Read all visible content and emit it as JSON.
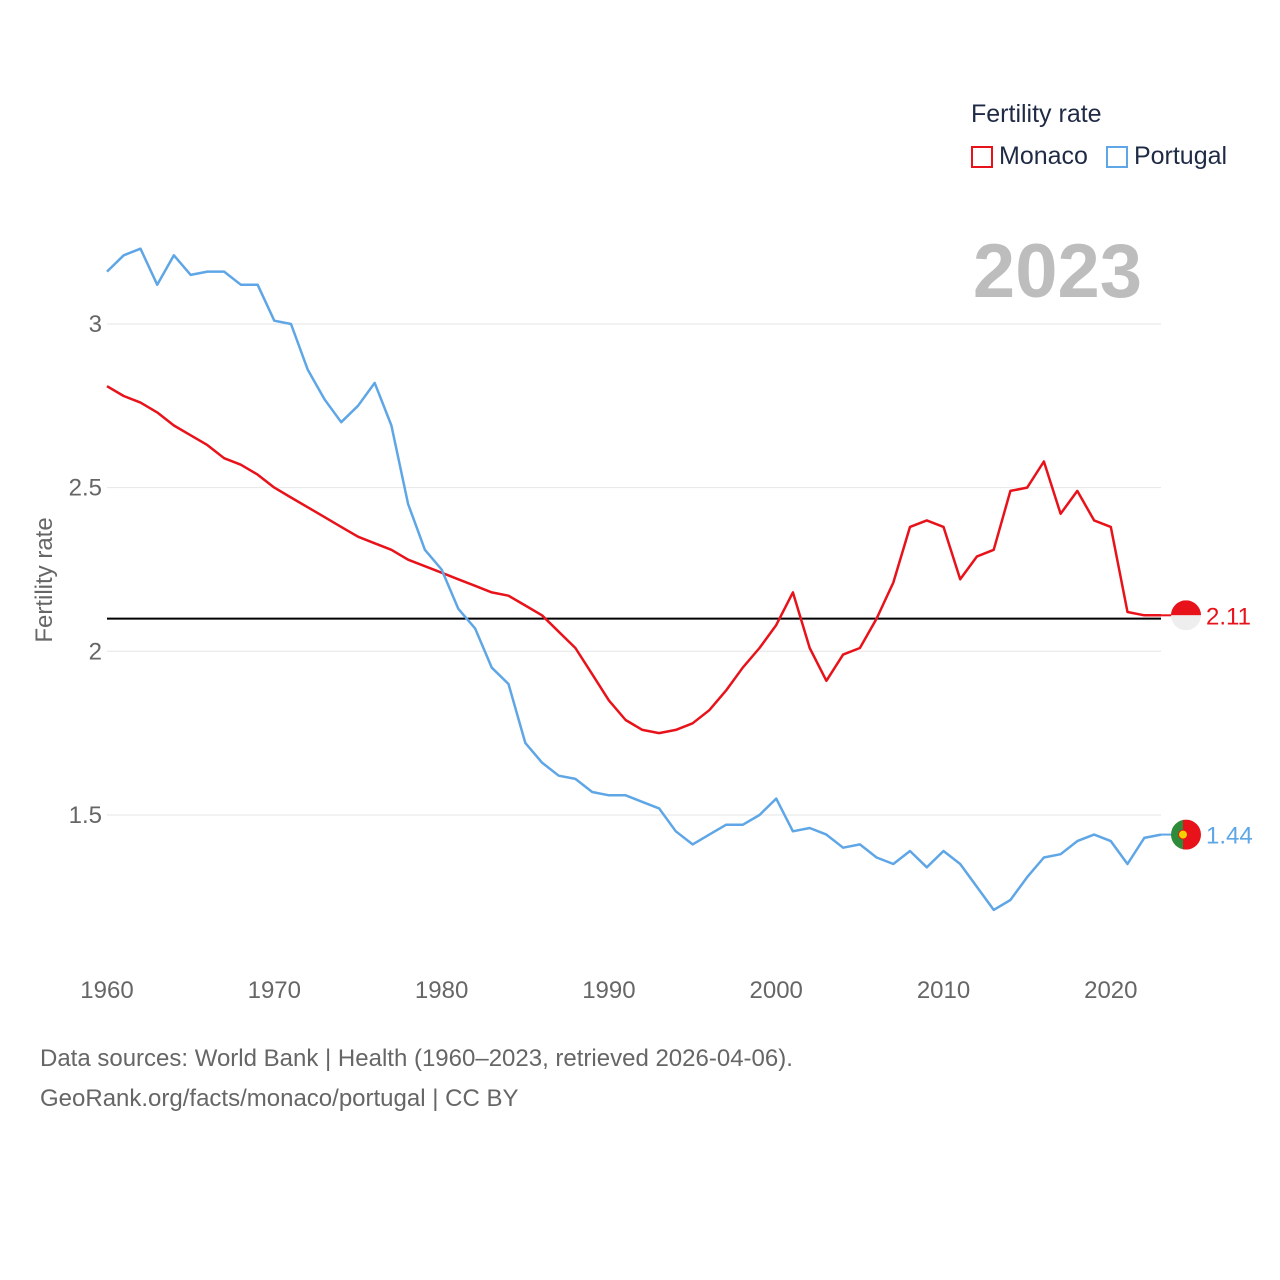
{
  "legend": {
    "title": "Fertility rate",
    "items": [
      {
        "name": "Monaco",
        "color": "#e8121b"
      },
      {
        "name": "Portugal",
        "color": "#5ea6e6"
      }
    ]
  },
  "year_label": "2023",
  "footer": {
    "line1": "Data sources: World Bank | Health (1960–2023, retrieved 2026-04-06).",
    "line2": "GeoRank.org/facts/monaco/portugal | CC BY"
  },
  "chart_data": {
    "type": "line",
    "title": "",
    "xlabel": "",
    "ylabel": "Fertility rate",
    "xlim": [
      1960,
      2023
    ],
    "ylim": [
      1.1,
      3.3
    ],
    "x_ticks": [
      1960,
      1970,
      1980,
      1990,
      2000,
      2010,
      2020
    ],
    "y_ticks": [
      1.5,
      2,
      2.5,
      3
    ],
    "y_tick_labels": [
      "1.5",
      "2",
      "2.5",
      "3"
    ],
    "reference_line": 2.1,
    "x": [
      1960,
      1961,
      1962,
      1963,
      1964,
      1965,
      1966,
      1967,
      1968,
      1969,
      1970,
      1971,
      1972,
      1973,
      1974,
      1975,
      1976,
      1977,
      1978,
      1979,
      1980,
      1981,
      1982,
      1983,
      1984,
      1985,
      1986,
      1987,
      1988,
      1989,
      1990,
      1991,
      1992,
      1993,
      1994,
      1995,
      1996,
      1997,
      1998,
      1999,
      2000,
      2001,
      2002,
      2003,
      2004,
      2005,
      2006,
      2007,
      2008,
      2009,
      2010,
      2011,
      2012,
      2013,
      2014,
      2015,
      2016,
      2017,
      2018,
      2019,
      2020,
      2021,
      2022,
      2023
    ],
    "series": [
      {
        "name": "Monaco",
        "color": "#e8121b",
        "end_label": "2.11",
        "values": [
          2.81,
          2.78,
          2.76,
          2.73,
          2.69,
          2.66,
          2.63,
          2.59,
          2.57,
          2.54,
          2.5,
          2.47,
          2.44,
          2.41,
          2.38,
          2.35,
          2.33,
          2.31,
          2.28,
          2.26,
          2.24,
          2.22,
          2.2,
          2.18,
          2.17,
          2.14,
          2.11,
          2.06,
          2.01,
          1.93,
          1.85,
          1.79,
          1.76,
          1.75,
          1.76,
          1.78,
          1.82,
          1.88,
          1.95,
          2.01,
          2.08,
          2.18,
          2.01,
          1.91,
          1.99,
          2.01,
          2.1,
          2.21,
          2.38,
          2.4,
          2.38,
          2.22,
          2.29,
          2.31,
          2.49,
          2.5,
          2.58,
          2.42,
          2.49,
          2.4,
          2.38,
          2.12,
          2.11,
          2.11
        ]
      },
      {
        "name": "Portugal",
        "color": "#5ea6e6",
        "end_label": "1.44",
        "values": [
          3.16,
          3.21,
          3.23,
          3.12,
          3.21,
          3.15,
          3.16,
          3.16,
          3.12,
          3.12,
          3.01,
          3.0,
          2.86,
          2.77,
          2.7,
          2.75,
          2.82,
          2.69,
          2.45,
          2.31,
          2.25,
          2.13,
          2.07,
          1.95,
          1.9,
          1.72,
          1.66,
          1.62,
          1.61,
          1.57,
          1.56,
          1.56,
          1.54,
          1.52,
          1.45,
          1.41,
          1.44,
          1.47,
          1.47,
          1.5,
          1.55,
          1.45,
          1.46,
          1.44,
          1.4,
          1.41,
          1.37,
          1.35,
          1.39,
          1.34,
          1.39,
          1.35,
          1.28,
          1.21,
          1.24,
          1.31,
          1.37,
          1.38,
          1.42,
          1.44,
          1.42,
          1.35,
          1.43,
          1.44
        ]
      }
    ]
  }
}
